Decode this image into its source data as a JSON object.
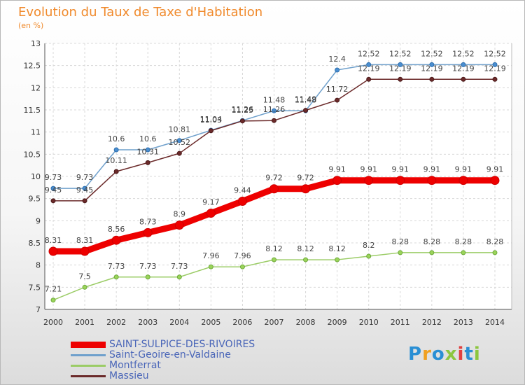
{
  "chart_data": {
    "type": "line",
    "title": "Evolution du Taux de Taxe d'Habitation",
    "ylabel": "(en %)",
    "xlabel": "",
    "x": [
      "2000",
      "2001",
      "2002",
      "2003",
      "2004",
      "2005",
      "2006",
      "2007",
      "2008",
      "2009",
      "2010",
      "2011",
      "2012",
      "2013",
      "2014"
    ],
    "ylim": [
      7,
      13
    ],
    "yticks": [
      "7",
      "7.5",
      "8",
      "8.5",
      "9",
      "9.5",
      "10",
      "10.5",
      "11",
      "11.5",
      "12",
      "12.5",
      "13"
    ],
    "grid": true,
    "legend_position": "bottom-left",
    "series": [
      {
        "name": "SAINT-SULPICE-DES-RIVOIRES",
        "color": "#ee0000",
        "values": [
          8.31,
          8.31,
          8.56,
          8.73,
          8.9,
          9.17,
          9.44,
          9.72,
          9.72,
          9.91,
          9.91,
          9.91,
          9.91,
          9.91,
          9.91
        ]
      },
      {
        "name": "Saint-Geoire-en-Valdaine",
        "color": "#6fa0cc",
        "values": [
          9.73,
          9.73,
          10.6,
          10.6,
          10.81,
          11.04,
          11.26,
          11.48,
          11.48,
          12.4,
          12.52,
          12.52,
          12.52,
          12.52,
          12.52
        ]
      },
      {
        "name": "Montferrat",
        "color": "#9bcc66",
        "values": [
          7.21,
          7.5,
          7.73,
          7.73,
          7.73,
          7.96,
          7.96,
          8.12,
          8.12,
          8.12,
          8.2,
          8.28,
          8.28,
          8.28,
          8.28
        ]
      },
      {
        "name": "Massieu",
        "color": "#6b2a2a",
        "values": [
          9.45,
          9.45,
          10.11,
          10.31,
          10.52,
          11.03,
          11.25,
          11.26,
          11.49,
          11.72,
          12.19,
          12.19,
          12.19,
          12.19,
          12.19
        ]
      }
    ]
  },
  "logo_text": "Proxiti"
}
